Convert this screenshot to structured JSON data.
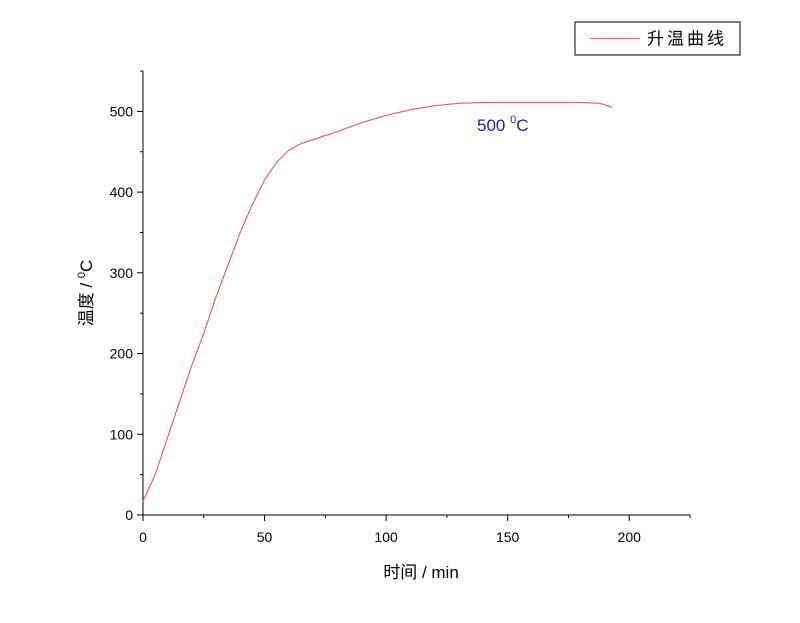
{
  "chart_data": {
    "type": "line",
    "xlabel": "时间 / min",
    "ylabel_parts": [
      "温度 / ",
      "0",
      "C"
    ],
    "annotation_parts": [
      "500 ",
      "0",
      "C"
    ],
    "annotation_color": "#1c1ca8",
    "legend_position": "top-right",
    "xlim": [
      0,
      225
    ],
    "xticks": [
      0,
      50,
      100,
      150,
      200
    ],
    "xminorticks": [
      25,
      75,
      125,
      175,
      225
    ],
    "ylim": [
      0,
      550
    ],
    "yticks": [
      0,
      100,
      200,
      300,
      400,
      500
    ],
    "yminorticks": [
      50,
      150,
      250,
      350,
      450,
      550
    ],
    "grid": false,
    "series": [
      {
        "name": "升温曲线",
        "color": "#e06464",
        "x": [
          0,
          5,
          10,
          15,
          20,
          25,
          30,
          35,
          40,
          45,
          50,
          55,
          60,
          65,
          70,
          80,
          90,
          100,
          110,
          120,
          130,
          140,
          150,
          160,
          170,
          180,
          188,
          193
        ],
        "values": [
          17,
          50,
          95,
          140,
          185,
          225,
          270,
          310,
          350,
          385,
          415,
          437,
          452,
          460,
          465,
          475,
          486,
          495,
          502,
          507,
          510,
          511,
          511,
          511,
          511,
          511,
          510,
          505
        ]
      }
    ]
  }
}
